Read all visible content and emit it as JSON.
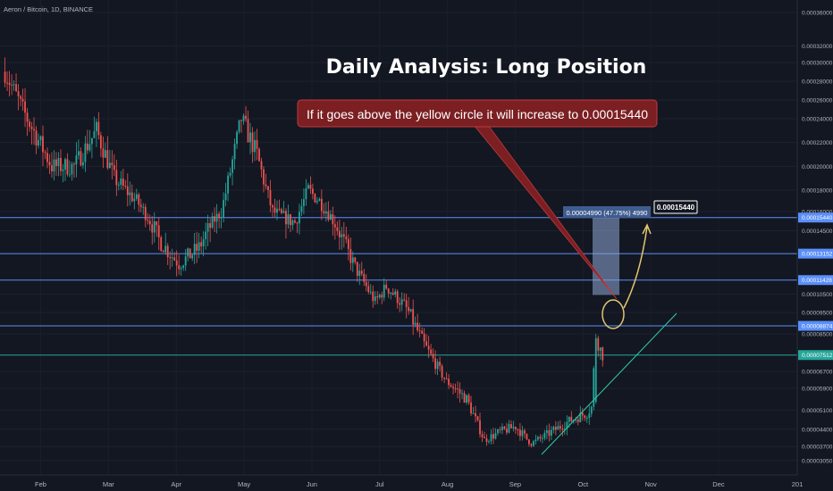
{
  "header": {
    "symbol_label": "Aeron / Bitcoin, 1D, BINANCE"
  },
  "annotations": {
    "title": "Daily Analysis: Long Position",
    "callout": "If it goes above the yellow circle it will increase to 0.00015440",
    "measure_label": "0.00004990 (47.75%) 4990",
    "target_label": "0.00015440"
  },
  "colors": {
    "background": "#131722",
    "up_candle": "#26a69a",
    "down_candle": "#ef5350",
    "blue_line": "#5b8ff9",
    "green_line": "#26a69a",
    "circle": "#e3c56e",
    "callout_bg": "#7b1f22",
    "callout_border": "#c0393e",
    "measure_box": "#8fa8d6",
    "trendline": "#2fcfa0"
  },
  "chart_data": {
    "type": "candlestick",
    "title": "Daily Analysis: Long Position",
    "xlabel": "",
    "ylabel": "",
    "ylim": [
      2.7e-05,
      0.00036
    ],
    "x_ticks": [
      "Feb",
      "Mar",
      "Apr",
      "May",
      "Jun",
      "Jul",
      "Aug",
      "Sep",
      "Oct",
      "Nov",
      "Dec",
      "201"
    ],
    "y_ticks": [
      "0.00036000",
      "0.00032000",
      "0.00030000",
      "0.00028000",
      "0.00026000",
      "0.00024000",
      "0.00022000",
      "0.00020000",
      "0.00018000",
      "0.00016000",
      "0.00014500",
      "0.00010500",
      "0.00009500",
      "0.00008500",
      "0.00006700",
      "0.00005900",
      "0.00005100",
      "0.00004400",
      "0.00003700",
      "0.00003050"
    ],
    "horizontal_levels": [
      {
        "value": 0.0001544,
        "label": "0.00015440",
        "style": "blue"
      },
      {
        "value": 0.00013152,
        "label": "0.00013152",
        "style": "blue"
      },
      {
        "value": 0.00011428,
        "label": "0.00011428",
        "style": "blue"
      },
      {
        "value": 8.874e-05,
        "label": "0.00008874",
        "style": "blue"
      },
      {
        "value": 7.512e-05,
        "label": "0.00007512",
        "style": "green"
      }
    ],
    "last_price": 7.512e-05,
    "price_path": [
      {
        "date": "Jan 15",
        "value": 0.00029
      },
      {
        "date": "Jan 25",
        "value": 0.00024
      },
      {
        "date": "Feb 05",
        "value": 0.0002
      },
      {
        "date": "Feb 15",
        "value": 0.0002
      },
      {
        "date": "Feb 25",
        "value": 0.00023
      },
      {
        "date": "Mar 05",
        "value": 0.00019
      },
      {
        "date": "Mar 15",
        "value": 0.00017
      },
      {
        "date": "Mar 25",
        "value": 0.00014
      },
      {
        "date": "Apr 03",
        "value": 0.000125
      },
      {
        "date": "Apr 12",
        "value": 0.000135
      },
      {
        "date": "Apr 22",
        "value": 0.00016
      },
      {
        "date": "May 01",
        "value": 0.00024
      },
      {
        "date": "May 08",
        "value": 0.00021
      },
      {
        "date": "May 15",
        "value": 0.00016
      },
      {
        "date": "May 25",
        "value": 0.00015
      },
      {
        "date": "May 31",
        "value": 0.00018
      },
      {
        "date": "Jun 05",
        "value": 0.00017
      },
      {
        "date": "Jun 12",
        "value": 0.00015
      },
      {
        "date": "Jun 22",
        "value": 0.00012
      },
      {
        "date": "Jun 30",
        "value": 0.0001
      },
      {
        "date": "Jul 05",
        "value": 0.00011
      },
      {
        "date": "Jul 15",
        "value": 9.5e-05
      },
      {
        "date": "Jul 22",
        "value": 8e-05
      },
      {
        "date": "Aug 01",
        "value": 6.2e-05
      },
      {
        "date": "Aug 10",
        "value": 5.5e-05
      },
      {
        "date": "Aug 18",
        "value": 4e-05
      },
      {
        "date": "Aug 25",
        "value": 4.3e-05
      },
      {
        "date": "Sep 01",
        "value": 4.5e-05
      },
      {
        "date": "Sep 08",
        "value": 3.85e-05
      },
      {
        "date": "Sep 15",
        "value": 4.2e-05
      },
      {
        "date": "Sep 25",
        "value": 4.7e-05
      },
      {
        "date": "Oct 03",
        "value": 5e-05
      },
      {
        "date": "Oct 05",
        "value": 5.2e-05
      },
      {
        "date": "Oct 07",
        "value": 8.3e-05
      },
      {
        "date": "Oct 10",
        "value": 7.5e-05
      }
    ],
    "grid": false,
    "legend": "none"
  }
}
